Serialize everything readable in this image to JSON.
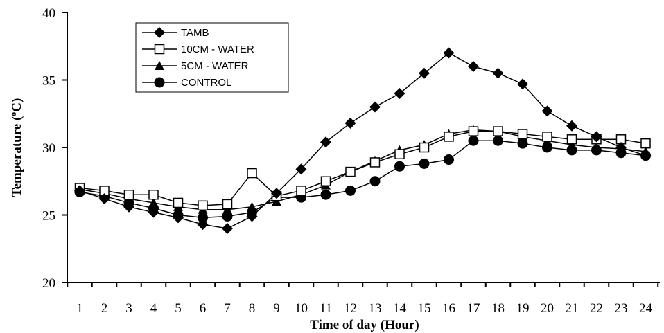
{
  "chart_data": {
    "type": "line",
    "xlabel": "Time of day (Hour)",
    "ylabel_prefix": "Temperature (",
    "ylabel_degree": "o",
    "ylabel_suffix": "C)",
    "ylim": [
      20,
      40
    ],
    "yticks": [
      20,
      25,
      30,
      35,
      40
    ],
    "categories": [
      "1",
      "2",
      "3",
      "4",
      "5",
      "6",
      "7",
      "8",
      "9",
      "10",
      "11",
      "12",
      "13",
      "14",
      "15",
      "16",
      "17",
      "18",
      "19",
      "20",
      "21",
      "22",
      "23",
      "24"
    ],
    "grid": false,
    "legend_position": "top-left",
    "series": [
      {
        "name": "TAMB",
        "marker": "diamond",
        "values": [
          26.8,
          26.2,
          25.6,
          25.2,
          24.8,
          24.3,
          24.0,
          24.9,
          26.6,
          28.4,
          30.4,
          31.8,
          33.0,
          34.0,
          35.5,
          37.0,
          36.0,
          35.5,
          34.7,
          32.7,
          31.6,
          30.8,
          30.0,
          29.4
        ]
      },
      {
        "name": "10CM - WATER",
        "marker": "square",
        "values": [
          27.0,
          26.8,
          26.5,
          26.5,
          25.9,
          25.7,
          25.8,
          28.1,
          26.4,
          26.8,
          27.5,
          28.2,
          28.9,
          29.5,
          30.0,
          30.8,
          31.2,
          31.2,
          31.0,
          30.8,
          30.6,
          30.6,
          30.6,
          30.3
        ]
      },
      {
        "name": "5CM - WATER",
        "marker": "triangle",
        "values": [
          26.9,
          26.6,
          26.2,
          25.9,
          25.6,
          25.4,
          25.4,
          25.6,
          26.0,
          26.5,
          27.2,
          28.2,
          29.0,
          29.8,
          30.2,
          31.0,
          31.3,
          31.2,
          30.8,
          30.5,
          30.2,
          30.0,
          29.9,
          29.7
        ]
      },
      {
        "name": "CONTROL",
        "marker": "circle",
        "values": [
          26.7,
          26.4,
          25.9,
          25.5,
          25.0,
          24.8,
          24.9,
          25.2,
          26.3,
          26.3,
          26.5,
          26.8,
          27.5,
          28.6,
          28.8,
          29.1,
          30.5,
          30.5,
          30.3,
          30.0,
          29.8,
          29.8,
          29.6,
          29.4
        ]
      }
    ]
  }
}
